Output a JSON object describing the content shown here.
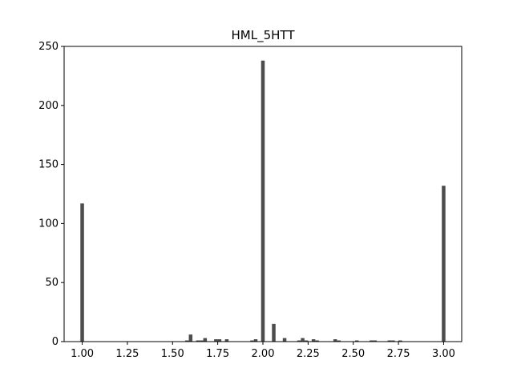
{
  "chart_data": {
    "type": "bar",
    "title": "HML_5HTT",
    "xlabel": "",
    "ylabel": "",
    "xlim": [
      0.9,
      3.1
    ],
    "ylim": [
      0,
      250
    ],
    "xticks": [
      1.0,
      1.25,
      1.5,
      1.75,
      2.0,
      2.25,
      2.5,
      2.75,
      3.0
    ],
    "xtick_labels": [
      "1.00",
      "1.25",
      "1.50",
      "1.75",
      "2.00",
      "2.25",
      "2.50",
      "2.75",
      "3.00"
    ],
    "yticks": [
      0,
      50,
      100,
      150,
      200,
      250
    ],
    "ytick_labels": [
      "0",
      "50",
      "100",
      "150",
      "200",
      "250"
    ],
    "bar_width": 0.02,
    "bar_color": "#4d4d4d",
    "x": [
      1.0,
      1.58,
      1.6,
      1.64,
      1.66,
      1.68,
      1.74,
      1.76,
      1.8,
      1.94,
      1.96,
      2.0,
      2.06,
      2.12,
      2.2,
      2.22,
      2.24,
      2.28,
      2.3,
      2.4,
      2.42,
      2.52,
      2.6,
      2.62,
      2.7,
      2.72,
      2.76,
      3.0
    ],
    "values": [
      117,
      1,
      6,
      1,
      1,
      3,
      2,
      2,
      2,
      1,
      2,
      238,
      15,
      3,
      1,
      3,
      1,
      2,
      1,
      2,
      1,
      1,
      1,
      1,
      1,
      1,
      1,
      132
    ]
  }
}
